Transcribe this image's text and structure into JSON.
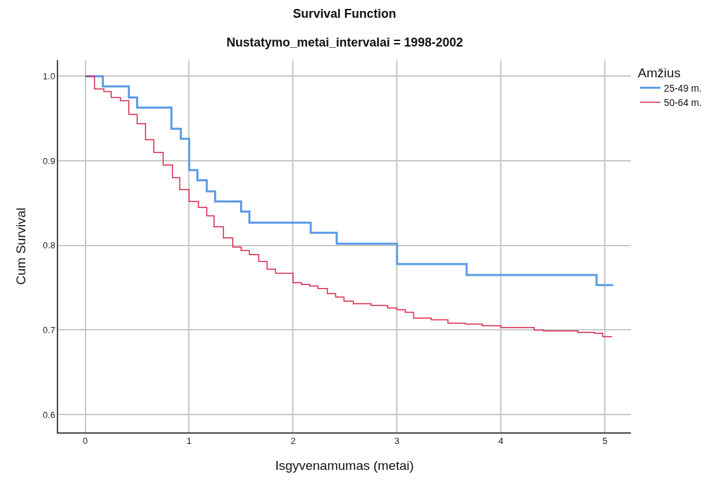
{
  "chart_data": {
    "type": "step",
    "title": "Survival Function",
    "subtitle": "Nustatymo_metai_intervalai = 1998-2002",
    "xlabel": "Isgyvenamumas (metai)",
    "ylabel": "Cum Survival",
    "legend_title": "Amžius",
    "series": [
      {
        "name": "25-49 m.",
        "color": "#5b9be6",
        "x": [
          0,
          0.17,
          0.42,
          0.5,
          0.83,
          0.92,
          1.0,
          1.08,
          1.17,
          1.25,
          1.5,
          1.58,
          2.17,
          2.42,
          3.0,
          3.67,
          4.92,
          5.08
        ],
        "values": [
          1.0,
          0.988,
          0.975,
          0.963,
          0.938,
          0.926,
          0.889,
          0.877,
          0.864,
          0.852,
          0.84,
          0.827,
          0.815,
          0.802,
          0.778,
          0.765,
          0.753,
          0.753
        ]
      },
      {
        "name": "50-64 m.",
        "color": "#d9264a",
        "x": [
          0,
          0.09,
          0.18,
          0.25,
          0.34,
          0.42,
          0.5,
          0.58,
          0.66,
          0.75,
          0.84,
          0.91,
          1.0,
          1.09,
          1.17,
          1.24,
          1.33,
          1.42,
          1.5,
          1.58,
          1.67,
          1.75,
          1.83,
          2.0,
          2.08,
          2.16,
          2.24,
          2.33,
          2.41,
          2.49,
          2.58,
          2.75,
          2.91,
          3.0,
          3.08,
          3.16,
          3.33,
          3.49,
          3.66,
          3.82,
          4.0,
          4.32,
          4.41,
          4.74,
          4.9,
          4.98,
          5.07
        ],
        "values": [
          1.0,
          0.985,
          0.982,
          0.975,
          0.971,
          0.955,
          0.944,
          0.925,
          0.91,
          0.895,
          0.88,
          0.866,
          0.852,
          0.845,
          0.835,
          0.822,
          0.809,
          0.798,
          0.794,
          0.789,
          0.781,
          0.772,
          0.767,
          0.756,
          0.754,
          0.752,
          0.749,
          0.743,
          0.739,
          0.734,
          0.731,
          0.729,
          0.726,
          0.724,
          0.721,
          0.714,
          0.712,
          0.708,
          0.707,
          0.705,
          0.703,
          0.7,
          0.699,
          0.697,
          0.696,
          0.692,
          0.692
        ]
      }
    ],
    "xlim": [
      -0.26,
      5.25
    ],
    "xticks": [
      0,
      1,
      2,
      3,
      4,
      5
    ],
    "ylim": [
      0.579,
      1.019
    ],
    "yticks": [
      {
        "value": 0.6,
        "label": "0.6"
      },
      {
        "value": 0.7,
        "label": "0.7"
      },
      {
        "value": 0.8,
        "label": "0.8"
      },
      {
        "value": 0.9,
        "label": "0.9"
      },
      {
        "value": 1.0,
        "label": "1.0"
      }
    ],
    "grid": true,
    "legend": "top right",
    "line_style": "solid"
  }
}
